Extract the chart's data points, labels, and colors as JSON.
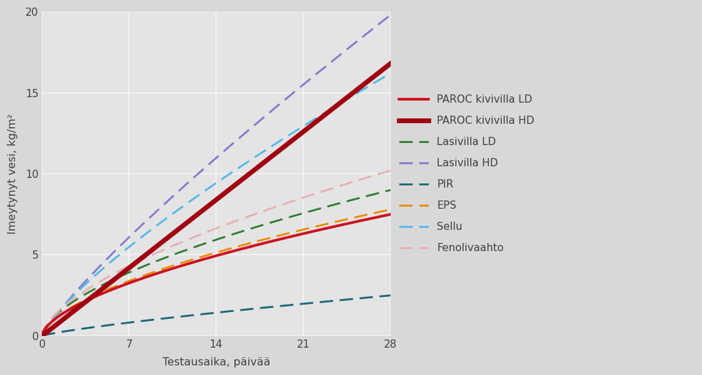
{
  "xlabel": "Testausaika, päivää",
  "ylabel": "Imeytynyt vesi, kg/m²",
  "xlim": [
    0,
    28
  ],
  "ylim": [
    0,
    20
  ],
  "xticks": [
    0,
    7,
    14,
    21,
    28
  ],
  "yticks": [
    0,
    5,
    10,
    15,
    20
  ],
  "background_color": "#d8d8d8",
  "plot_bg_color": "#e4e4e4",
  "grid_color": "#f5f5f5",
  "series": [
    {
      "label": "PAROC kivivilla LD",
      "color": "#cc1122",
      "linewidth": 2.8,
      "linestyle": "solid",
      "end_value": 7.5,
      "exponent": 0.6
    },
    {
      "label": "PAROC kivivilla HD",
      "color": "#a00010",
      "linewidth": 5.0,
      "linestyle": "solid",
      "end_value": 16.8,
      "exponent": 1.0
    },
    {
      "label": "Lasivilla LD",
      "color": "#2e7d32",
      "linewidth": 2.0,
      "linestyle": "dashed",
      "end_value": 9.0,
      "exponent": 0.6
    },
    {
      "label": "Lasivilla HD",
      "color": "#8878cc",
      "linewidth": 2.0,
      "linestyle": "dashed",
      "end_value": 19.8,
      "exponent": 0.85
    },
    {
      "label": "PIR",
      "color": "#1a6678",
      "linewidth": 2.0,
      "linestyle": "dashed",
      "end_value": 2.5,
      "exponent": 0.8
    },
    {
      "label": "EPS",
      "color": "#e88c00",
      "linewidth": 2.0,
      "linestyle": "dashed",
      "end_value": 7.8,
      "exponent": 0.6
    },
    {
      "label": "Sellu",
      "color": "#55b8e8",
      "linewidth": 2.0,
      "linestyle": "dashed",
      "end_value": 16.2,
      "exponent": 0.78
    },
    {
      "label": "Fenolivaahto",
      "color": "#e8b0b0",
      "linewidth": 2.0,
      "linestyle": "dashed",
      "end_value": 10.2,
      "exponent": 0.62
    }
  ],
  "legend_fontsize": 11,
  "axis_fontsize": 11.5,
  "tick_fontsize": 11
}
